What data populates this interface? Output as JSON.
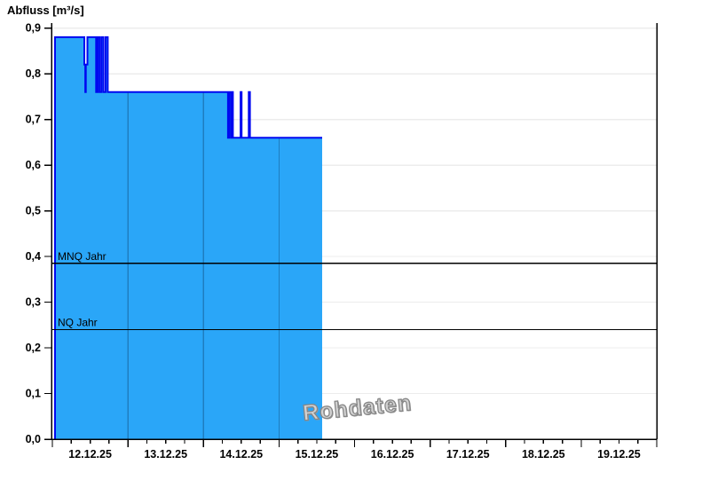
{
  "title": "Abfluss [m³/s]",
  "watermark": "Rohdaten",
  "chart_data": {
    "type": "area",
    "title": "Abfluss [m³/s]",
    "ylabel": "Abfluss [m³/s]",
    "ylim": [
      0.0,
      0.9
    ],
    "y_tick_values": [
      0.0,
      0.1,
      0.2,
      0.3,
      0.4,
      0.5,
      0.6,
      0.7,
      0.8,
      0.9
    ],
    "y_tick_labels": [
      "0,0",
      "0,1",
      "0,2",
      "0,3",
      "0,4",
      "0,5",
      "0,6",
      "0,7",
      "0,8",
      "0,9"
    ],
    "x_day_labels": [
      "12.12.25",
      "13.12.25",
      "14.12.25",
      "15.12.25",
      "16.12.25",
      "17.12.25",
      "18.12.25",
      "19.12.25"
    ],
    "x_total_hours": 192,
    "x_minor_tick_hours": 6,
    "grid": true,
    "legend": "none",
    "series": [
      {
        "name": "Abfluss Rohdaten",
        "unit": "m³/s",
        "start_hour": 0.85,
        "end_hour": 85.7,
        "steps": [
          [
            0.85,
            0.88
          ],
          [
            10.15,
            0.82
          ],
          [
            10.45,
            0.76
          ],
          [
            10.62,
            0.82
          ],
          [
            11.15,
            0.88
          ],
          [
            13.9,
            0.76
          ],
          [
            14.4,
            0.88
          ],
          [
            15.0,
            0.76
          ],
          [
            15.6,
            0.88
          ],
          [
            16.2,
            0.76
          ],
          [
            16.9,
            0.88
          ],
          [
            17.6,
            0.76
          ],
          [
            55.8,
            0.66
          ],
          [
            56.1,
            0.76
          ],
          [
            56.7,
            0.66
          ],
          [
            57.0,
            0.76
          ],
          [
            57.35,
            0.66
          ],
          [
            59.8,
            0.76
          ],
          [
            60.1,
            0.66
          ],
          [
            62.4,
            0.76
          ],
          [
            62.75,
            0.66
          ]
        ]
      }
    ],
    "reference_lines": [
      {
        "label": "MNQ Jahr",
        "value": 0.385
      },
      {
        "label": "NQ Jahr",
        "value": 0.24
      }
    ],
    "colors": {
      "fill": "#2aa6f8",
      "line": "#0008f0",
      "day_divider": "#1f7dc0",
      "gridline": "#ececec",
      "axis": "#000000",
      "reference_line": "#000000",
      "watermark": "#b5b5b5"
    }
  }
}
